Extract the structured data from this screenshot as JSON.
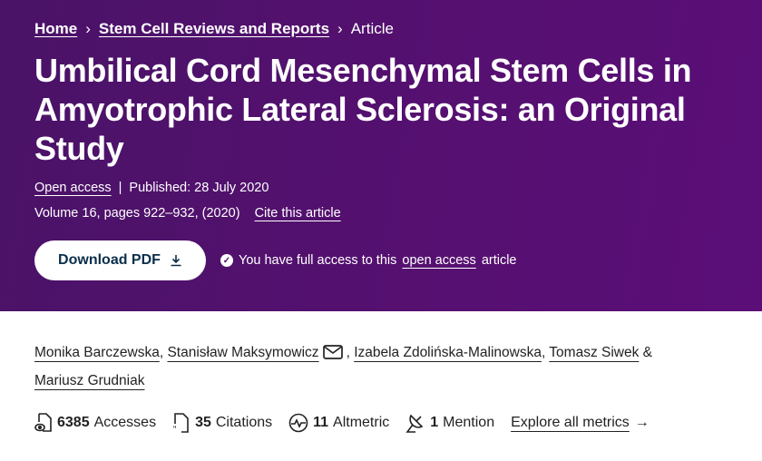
{
  "breadcrumb": {
    "items": [
      "Home",
      "Stem Cell Reviews and Reports"
    ],
    "current": "Article"
  },
  "title": "Umbilical Cord Mesenchymal Stem Cells in Amyotrophic Lateral Sclerosis: an Original Study",
  "meta": {
    "open_access": "Open access",
    "published": "Published: 28 July 2020",
    "volume": "Volume 16, pages 922–932, (2020)",
    "cite": "Cite this article"
  },
  "actions": {
    "download": "Download PDF",
    "access_prefix": "You have full access to this",
    "access_link": "open access",
    "access_suffix": "article"
  },
  "authors": [
    "Monika Barczewska",
    "Stanisław Maksymowicz",
    "Izabela Zdolińska-Malinowska",
    "Tomasz Siwek",
    "Mariusz Grudniak"
  ],
  "metrics": {
    "accesses_count": "6385",
    "accesses_label": "Accesses",
    "citations_count": "35",
    "citations_label": "Citations",
    "altmetric_count": "11",
    "altmetric_label": "Altmetric",
    "mention_count": "1",
    "mention_label": "Mention",
    "explore": "Explore all metrics"
  },
  "colors": {
    "hero": "#551070",
    "button_text": "#0b2e4a"
  }
}
